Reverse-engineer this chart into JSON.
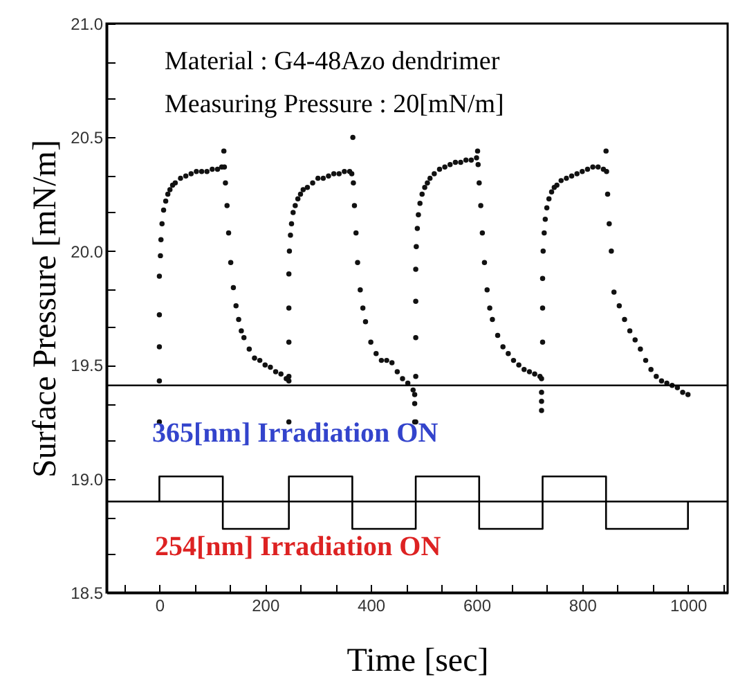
{
  "chart_data": {
    "type": "scatter",
    "xlabel": "Time [sec]",
    "ylabel": "Surface Pressure [mN/m]",
    "annotations": [
      "Material : G4-48Azo dendrimer",
      "Measuring Pressure : 20[mN/m]",
      "365[nm] Irradiation ON",
      "254[nm] Irradiation ON"
    ],
    "xlim": [
      -100,
      1075
    ],
    "ylim": [
      18.5,
      21.0
    ],
    "xticks": [
      0,
      200,
      400,
      600,
      800,
      1000,
      {
        "value": -66.7,
        "label": null
      },
      {
        "value": 66.7,
        "label": null
      },
      {
        "value": 133.3,
        "label": null
      },
      {
        "value": 266.7,
        "label": null
      },
      {
        "value": 333.3,
        "label": null
      },
      {
        "value": 466.7,
        "label": null
      },
      {
        "value": 533.3,
        "label": null
      },
      {
        "value": 666.7,
        "label": null
      },
      {
        "value": 733.3,
        "label": null
      },
      {
        "value": 866.7,
        "label": null
      },
      {
        "value": 933.3,
        "label": null
      },
      {
        "value": 1066.7,
        "label": null
      }
    ],
    "yticks": [
      {
        "value": 18.5,
        "label": "18.5"
      },
      {
        "value": 19.0,
        "label": "19.0"
      },
      {
        "value": 19.5,
        "label": "19.5"
      },
      {
        "value": 20.0,
        "label": "20.0"
      },
      {
        "value": 20.5,
        "label": "20.5"
      },
      {
        "value": 21.0,
        "label": "21.0"
      },
      {
        "value": 18.67,
        "label": null
      },
      {
        "value": 18.83,
        "label": null
      },
      {
        "value": 19.17,
        "label": null
      },
      {
        "value": 19.33,
        "label": null
      },
      {
        "value": 19.67,
        "label": null
      },
      {
        "value": 19.83,
        "label": null
      },
      {
        "value": 20.17,
        "label": null
      },
      {
        "value": 20.33,
        "label": null
      },
      {
        "value": 20.67,
        "label": null
      },
      {
        "value": 20.83,
        "label": null
      }
    ],
    "grid": false,
    "ref_lines": [
      {
        "axis": "y",
        "value": 19.41,
        "color": "#000000"
      },
      {
        "axis": "y",
        "value": 18.9,
        "color": "#000000"
      }
    ],
    "series": [
      {
        "type": "scatter",
        "marker": "circle",
        "color": "#111111",
        "x": [
          0,
          0,
          0,
          0,
          0,
          2,
          3,
          5,
          8,
          12,
          16,
          20,
          25,
          30,
          40,
          50,
          60,
          70,
          80,
          90,
          100,
          110,
          118,
          122,
          123,
          125,
          128,
          131,
          135,
          140,
          145,
          150,
          155,
          160,
          170,
          180,
          190,
          200,
          210,
          220,
          230,
          240,
          245,
          245,
          245,
          245,
          245,
          245,
          246,
          248,
          250,
          253,
          257,
          262,
          267,
          272,
          280,
          290,
          300,
          310,
          320,
          330,
          340,
          350,
          360,
          364,
          366,
          367,
          369,
          372,
          375,
          380,
          385,
          390,
          400,
          410,
          420,
          430,
          440,
          450,
          460,
          470,
          480,
          483,
          483,
          483,
          485,
          485,
          485,
          485,
          485,
          486,
          488,
          490,
          493,
          497,
          502,
          507,
          512,
          520,
          530,
          540,
          550,
          560,
          570,
          580,
          590,
          600,
          602,
          603,
          605,
          608,
          611,
          615,
          620,
          625,
          630,
          640,
          650,
          660,
          670,
          680,
          690,
          700,
          710,
          720,
          723,
          723,
          723,
          723,
          725,
          725,
          725,
          726,
          728,
          730,
          733,
          737,
          742,
          747,
          752,
          760,
          770,
          780,
          790,
          800,
          810,
          820,
          830,
          840,
          845,
          846,
          848,
          851,
          855,
          860,
          870,
          880,
          890,
          900,
          910,
          920,
          930,
          940,
          950,
          960,
          970,
          980,
          990,
          1000
        ],
        "values": [
          19.25,
          19.43,
          19.58,
          19.72,
          19.89,
          19.98,
          20.05,
          20.12,
          20.18,
          20.22,
          20.25,
          20.27,
          20.29,
          20.3,
          20.32,
          20.33,
          20.34,
          20.35,
          20.35,
          20.35,
          20.36,
          20.36,
          20.37,
          20.44,
          20.37,
          20.3,
          20.2,
          20.08,
          19.95,
          19.84,
          19.76,
          19.7,
          19.65,
          19.62,
          19.57,
          19.53,
          19.52,
          19.5,
          19.49,
          19.47,
          19.46,
          19.44,
          19.43,
          19.25,
          19.45,
          19.6,
          19.75,
          19.9,
          20.0,
          20.07,
          20.12,
          20.17,
          20.2,
          20.23,
          20.25,
          20.27,
          20.28,
          20.3,
          20.32,
          20.32,
          20.33,
          20.34,
          20.34,
          20.35,
          20.35,
          20.34,
          20.5,
          20.3,
          20.2,
          20.08,
          19.95,
          19.83,
          19.75,
          19.69,
          19.6,
          19.55,
          19.52,
          19.52,
          19.51,
          19.47,
          19.44,
          19.42,
          19.39,
          19.37,
          19.33,
          19.25,
          19.25,
          19.45,
          19.62,
          19.78,
          19.92,
          20.02,
          20.1,
          20.16,
          20.21,
          20.25,
          20.28,
          20.3,
          20.32,
          20.34,
          20.36,
          20.37,
          20.38,
          20.39,
          20.39,
          20.4,
          20.4,
          20.41,
          20.44,
          20.38,
          20.3,
          20.2,
          20.08,
          19.95,
          19.83,
          19.75,
          19.7,
          19.63,
          19.58,
          19.55,
          19.52,
          19.5,
          19.48,
          19.47,
          19.46,
          19.45,
          19.44,
          19.38,
          19.34,
          19.3,
          19.6,
          19.75,
          19.88,
          20.0,
          20.08,
          20.14,
          20.19,
          20.23,
          20.26,
          20.28,
          20.29,
          20.31,
          20.32,
          20.33,
          20.34,
          20.35,
          20.36,
          20.37,
          20.37,
          20.36,
          20.44,
          20.35,
          20.25,
          20.12,
          20.0,
          19.82,
          19.76,
          19.7,
          19.65,
          19.61,
          19.57,
          19.52,
          19.48,
          19.45,
          19.43,
          19.42,
          19.41,
          19.4,
          19.38,
          19.37
        ]
      },
      {
        "type": "step",
        "marker": "none",
        "color": "#000000",
        "x": [
          0,
          0,
          120,
          245,
          365,
          485,
          605,
          725,
          845,
          1000
        ],
        "values": [
          18.9,
          19.01,
          18.78,
          19.01,
          18.78,
          19.01,
          18.78,
          19.01,
          18.78,
          18.9
        ]
      }
    ]
  }
}
